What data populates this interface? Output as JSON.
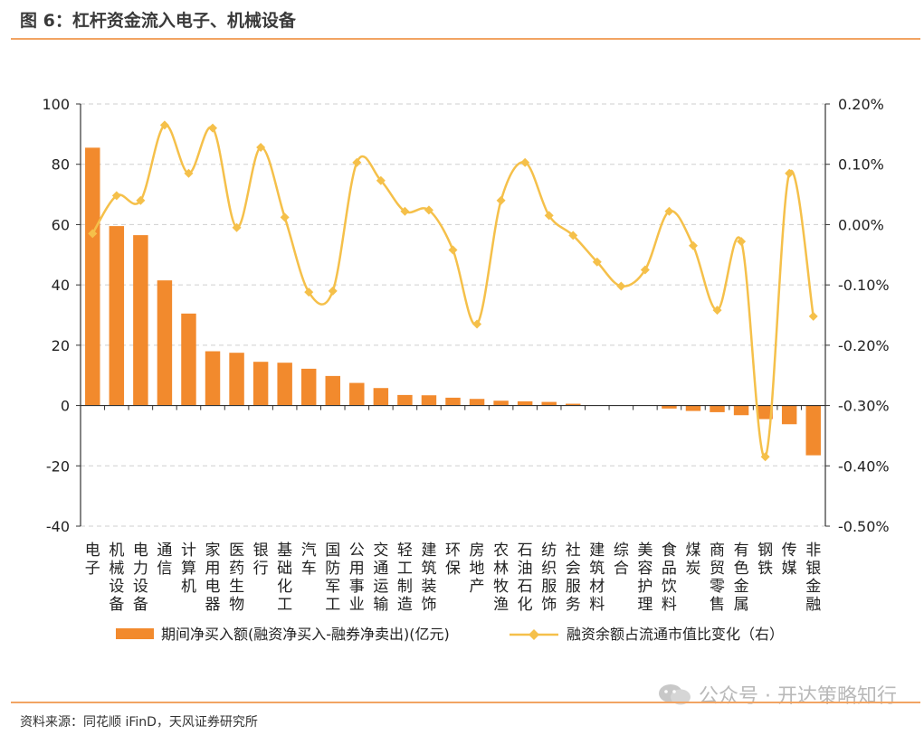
{
  "figure": {
    "title": "图 6：杠杆资金流入电子、机械设备",
    "source": "资料来源：同花顺 iFinD，天风证券研究所",
    "watermark": "公众号 · 开达策略知行"
  },
  "chart_data": {
    "type": "bar+line",
    "categories": [
      "电子",
      "机械设备",
      "电力设备",
      "通信",
      "计算机",
      "家用电器",
      "医药生物",
      "银行",
      "基础化工",
      "汽车",
      "国防军工",
      "公用事业",
      "交通运输",
      "轻工制造",
      "建筑装饰",
      "环保",
      "房地产",
      "农林牧渔",
      "石油石化",
      "纺织服饰",
      "社会服务",
      "建筑材料",
      "综合",
      "美容护理",
      "食品饮料",
      "煤炭",
      "商贸零售",
      "有色金属",
      "钢铁",
      "传媒",
      "非银金融"
    ],
    "series": [
      {
        "name": "期间净买入额(融资净买入-融券净卖出)(亿元)",
        "type": "bar",
        "axis": "left",
        "color": "#f28a2d",
        "values": [
          85.5,
          59.5,
          56.5,
          41.5,
          30.5,
          18,
          17.5,
          14.5,
          14.2,
          12.2,
          9.8,
          7.5,
          5.8,
          3.5,
          3.4,
          2.6,
          2.2,
          1.6,
          1.4,
          1.2,
          0.6,
          0,
          0,
          0,
          -1.0,
          -1.8,
          -2.2,
          -3.2,
          -4.5,
          -6.2,
          -16.5
        ]
      },
      {
        "name": "融资余额占流通市值比变化（右）",
        "type": "line",
        "axis": "right",
        "color": "#f5c04a",
        "values": [
          -0.015,
          0.048,
          0.04,
          0.165,
          0.085,
          0.16,
          -0.005,
          0.128,
          0.012,
          -0.112,
          -0.11,
          0.103,
          0.073,
          0.022,
          0.024,
          -0.042,
          -0.165,
          0.04,
          0.103,
          0.015,
          -0.018,
          -0.062,
          -0.102,
          -0.075,
          0.022,
          -0.035,
          -0.142,
          -0.028,
          -0.385,
          0.085,
          -0.152
        ]
      }
    ],
    "y_left": {
      "min": -40,
      "max": 100,
      "ticks": [
        "-40",
        "-20",
        "0",
        "20",
        "40",
        "60",
        "80",
        "100"
      ]
    },
    "y_right": {
      "min": -0.5,
      "max": 0.2,
      "ticks": [
        "-0.50%",
        "-0.40%",
        "-0.30%",
        "-0.20%",
        "-0.10%",
        "0.00%",
        "0.10%",
        "0.20%"
      ]
    },
    "grid": "horizontal dashed",
    "legend": "bottom"
  }
}
